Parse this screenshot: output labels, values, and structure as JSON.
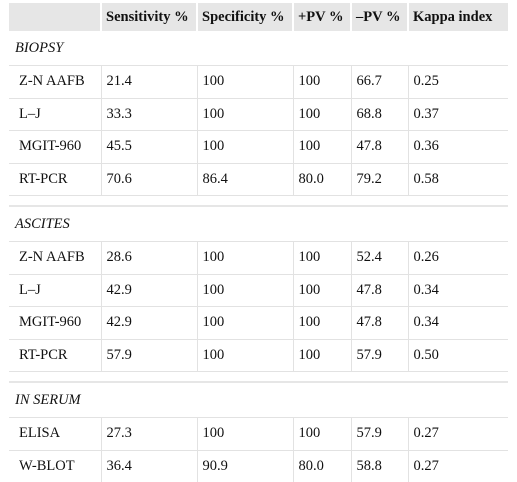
{
  "columns": [
    "",
    "Sensitivity %",
    "Specificity %",
    "+PV %",
    "–PV %",
    "Kappa index"
  ],
  "sections": [
    {
      "label": "BIOPSY",
      "rows": [
        [
          "Z-N AAFB",
          "21.4",
          "100",
          "100",
          "66.7",
          "0.25"
        ],
        [
          "L–J",
          "33.3",
          "100",
          "100",
          "68.8",
          "0.37"
        ],
        [
          "MGIT-960",
          "45.5",
          "100",
          "100",
          "47.8",
          "0.36"
        ],
        [
          "RT-PCR",
          "70.6",
          "86.4",
          "80.0",
          "79.2",
          "0.58"
        ]
      ]
    },
    {
      "label": "ASCITES",
      "rows": [
        [
          "Z-N AAFB",
          "28.6",
          "100",
          "100",
          "52.4",
          "0.26"
        ],
        [
          "L–J",
          "42.9",
          "100",
          "100",
          "47.8",
          "0.34"
        ],
        [
          "MGIT-960",
          "42.9",
          "100",
          "100",
          "47.8",
          "0.34"
        ],
        [
          "RT-PCR",
          "57.9",
          "100",
          "100",
          "57.9",
          "0.50"
        ]
      ]
    },
    {
      "label": "IN SERUM",
      "rows": [
        [
          "ELISA",
          "27.3",
          "100",
          "100",
          "57.9",
          "0.27"
        ],
        [
          "W-BLOT",
          "36.4",
          "90.9",
          "80.0",
          "58.8",
          "0.27"
        ]
      ]
    }
  ]
}
